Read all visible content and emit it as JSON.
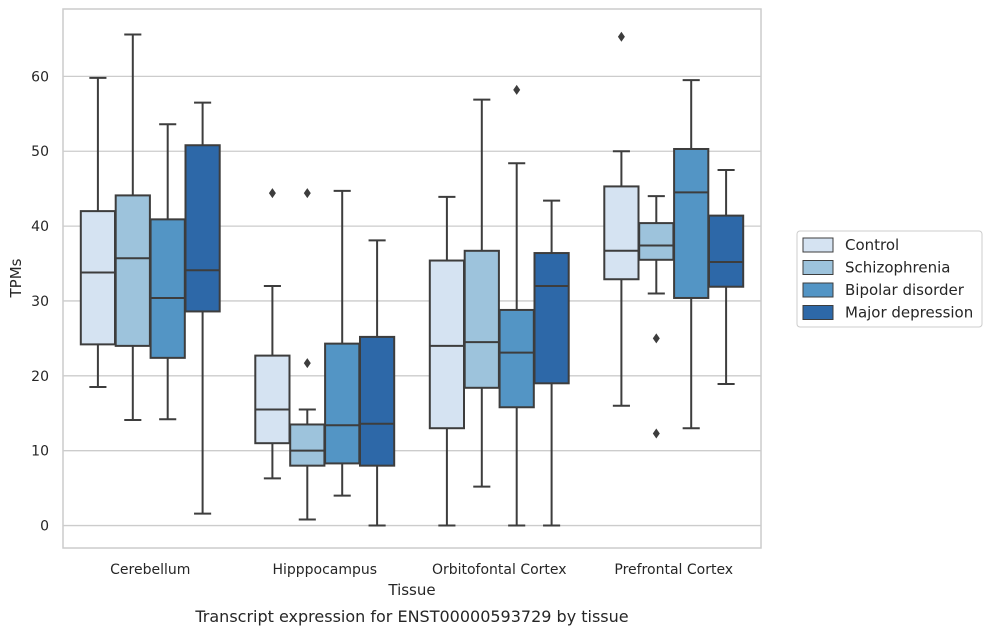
{
  "chart_data": {
    "type": "box",
    "title": "",
    "caption": "Transcript expression for ENST00000593729 by tissue",
    "xlabel": "Tissue",
    "ylabel": "TPMs",
    "ylim": [
      -3,
      69
    ],
    "yticks": [
      0,
      10,
      20,
      30,
      40,
      50,
      60
    ],
    "grid": "horizontal",
    "legend_position": "right",
    "categories": [
      "Cerebellum",
      "Hipppocampus",
      "Orbitofontal Cortex",
      "Prefrontal Cortex"
    ],
    "series": [
      {
        "name": "Control",
        "color": "#d5e3f2",
        "boxes": [
          {
            "whislo": 18.5,
            "q1": 24.2,
            "med": 33.8,
            "q3": 42.0,
            "whishi": 59.8,
            "fliers": []
          },
          {
            "whislo": 6.3,
            "q1": 11.0,
            "med": 15.5,
            "q3": 22.7,
            "whishi": 32.0,
            "fliers": [
              44.4
            ]
          },
          {
            "whislo": 0.0,
            "q1": 13.0,
            "med": 24.0,
            "q3": 35.4,
            "whishi": 43.9,
            "fliers": []
          },
          {
            "whislo": 16.0,
            "q1": 32.9,
            "med": 36.7,
            "q3": 45.3,
            "whishi": 50.0,
            "fliers": [
              65.3
            ]
          }
        ]
      },
      {
        "name": "Schizophrenia",
        "color": "#9dc3dc",
        "boxes": [
          {
            "whislo": 14.1,
            "q1": 24.0,
            "med": 35.7,
            "q3": 44.1,
            "whishi": 65.6,
            "fliers": []
          },
          {
            "whislo": 0.8,
            "q1": 8.0,
            "med": 10.0,
            "q3": 13.5,
            "whishi": 15.5,
            "fliers": [
              21.7,
              44.4
            ]
          },
          {
            "whislo": 5.2,
            "q1": 18.4,
            "med": 24.5,
            "q3": 36.7,
            "whishi": 56.9,
            "fliers": []
          },
          {
            "whislo": 31.0,
            "q1": 35.5,
            "med": 37.4,
            "q3": 40.4,
            "whishi": 44.0,
            "fliers": [
              25.0,
              12.3
            ]
          }
        ]
      },
      {
        "name": "Bipolar disorder",
        "color": "#5395c5",
        "boxes": [
          {
            "whislo": 14.2,
            "q1": 22.4,
            "med": 30.4,
            "q3": 40.9,
            "whishi": 53.6,
            "fliers": []
          },
          {
            "whislo": 4.0,
            "q1": 8.3,
            "med": 13.4,
            "q3": 24.3,
            "whishi": 44.7,
            "fliers": []
          },
          {
            "whislo": 0.0,
            "q1": 15.8,
            "med": 23.1,
            "q3": 28.8,
            "whishi": 48.4,
            "fliers": [
              58.2
            ]
          },
          {
            "whislo": 13.0,
            "q1": 30.4,
            "med": 44.5,
            "q3": 50.3,
            "whishi": 59.5,
            "fliers": []
          }
        ]
      },
      {
        "name": "Major depression",
        "color": "#2d68a8",
        "boxes": [
          {
            "whislo": 1.6,
            "q1": 28.6,
            "med": 34.1,
            "q3": 50.8,
            "whishi": 56.5,
            "fliers": []
          },
          {
            "whislo": 0.0,
            "q1": 8.0,
            "med": 13.6,
            "q3": 25.2,
            "whishi": 38.1,
            "fliers": []
          },
          {
            "whislo": 0.0,
            "q1": 19.0,
            "med": 32.0,
            "q3": 36.4,
            "whishi": 43.4,
            "fliers": []
          },
          {
            "whislo": 18.9,
            "q1": 31.9,
            "med": 35.2,
            "q3": 41.4,
            "whishi": 47.5,
            "fliers": []
          }
        ]
      }
    ]
  }
}
